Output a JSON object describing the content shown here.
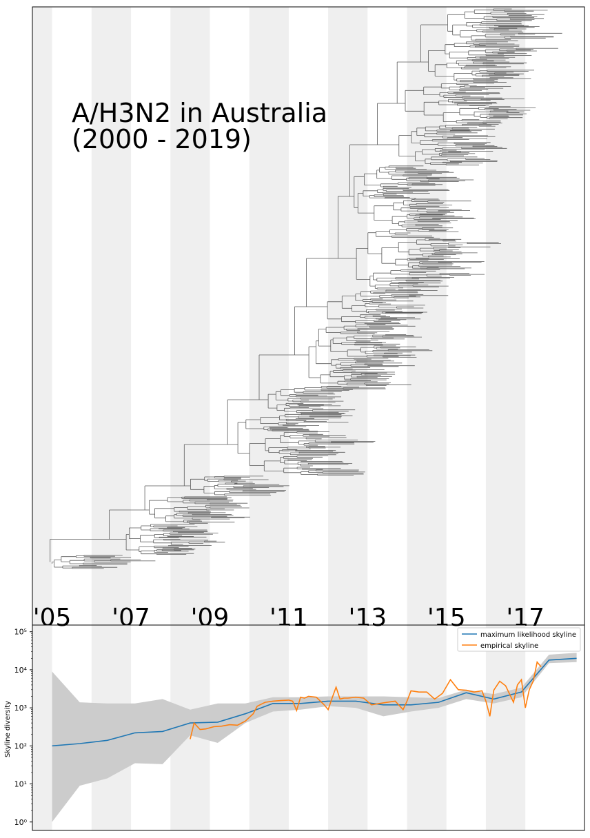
{
  "chart_data": [
    {
      "type": "tree",
      "title_lines": [
        "A/H3N2 in Australia",
        "(2000 - 2019)"
      ],
      "x_tick_labels": [
        "'05",
        "'07",
        "'09",
        "'11",
        "'13",
        "'15",
        "'17"
      ],
      "x_tick_years": [
        2005,
        2007,
        2009,
        2011,
        2013,
        2015,
        2017
      ],
      "xlim": [
        2004.5,
        2018.5
      ],
      "shaded_year_bands": [
        2004,
        2006,
        2008,
        2010,
        2012,
        2014,
        2016
      ]
    },
    {
      "type": "line",
      "ylabel": "Skyline diversity",
      "yscale": "log",
      "ylim": [
        0.6,
        150000
      ],
      "y_tick_labels": [
        "10⁰",
        "10¹",
        "10²",
        "10³",
        "10⁴",
        "10⁵"
      ],
      "y_tick_values": [
        1,
        10,
        100,
        1000,
        10000,
        100000
      ],
      "xlim": [
        2004.5,
        2018.5
      ],
      "legend_position": "top-right",
      "series": [
        {
          "name": "maximum likelihood skyline",
          "color": "#1f77b4",
          "x": [
            2005.0,
            2005.7,
            2006.4,
            2007.1,
            2007.8,
            2008.5,
            2009.2,
            2009.9,
            2010.6,
            2011.3,
            2012.0,
            2012.7,
            2013.4,
            2014.1,
            2014.8,
            2015.5,
            2016.2,
            2016.9,
            2017.6,
            2018.3
          ],
          "y": [
            100,
            115,
            140,
            220,
            240,
            400,
            420,
            700,
            1300,
            1300,
            1500,
            1500,
            1200,
            1200,
            1400,
            2500,
            1700,
            2600,
            18000,
            20000
          ],
          "ci_low": [
            1,
            9,
            14,
            35,
            33,
            190,
            120,
            400,
            800,
            900,
            1100,
            1000,
            600,
            800,
            1000,
            1700,
            1300,
            1900,
            15000,
            16000
          ],
          "ci_high": [
            9000,
            1400,
            1300,
            1300,
            1700,
            900,
            1300,
            1300,
            1900,
            1900,
            2000,
            2000,
            2000,
            1900,
            1800,
            3000,
            2300,
            3400,
            25000,
            28000
          ]
        },
        {
          "name": "empirical skyline",
          "color": "#ff7f0e",
          "x": [
            2008.5,
            2008.6,
            2008.75,
            2008.9,
            2009.1,
            2009.3,
            2009.5,
            2009.7,
            2009.9,
            2010.1,
            2010.2,
            2010.4,
            2010.6,
            2010.8,
            2011.0,
            2011.1,
            2011.2,
            2011.3,
            2011.4,
            2011.5,
            2011.7,
            2011.9,
            2012.0,
            2012.1,
            2012.2,
            2012.3,
            2012.4,
            2012.5,
            2012.7,
            2012.9,
            2013.1,
            2013.3,
            2013.5,
            2013.7,
            2013.9,
            2014.0,
            2014.1,
            2014.3,
            2014.5,
            2014.7,
            2014.9,
            2015.1,
            2015.3,
            2015.5,
            2015.7,
            2015.9,
            2016.0,
            2016.1,
            2016.2,
            2016.35,
            2016.5,
            2016.7,
            2016.8,
            2016.9,
            2017.0,
            2017.1,
            2017.2,
            2017.3,
            2017.4
          ],
          "y": [
            150,
            400,
            270,
            280,
            320,
            330,
            360,
            350,
            450,
            700,
            1100,
            1400,
            1500,
            1550,
            1600,
            1500,
            850,
            1900,
            1800,
            2000,
            1900,
            1200,
            900,
            1800,
            3500,
            1700,
            1800,
            1800,
            1900,
            1800,
            1200,
            1300,
            1400,
            1500,
            900,
            1500,
            2800,
            2600,
            2600,
            1700,
            2400,
            5500,
            3000,
            2900,
            2600,
            2800,
            1500,
            600,
            2900,
            5000,
            3800,
            1400,
            4000,
            5500,
            1000,
            3000,
            5000,
            16000,
            12000
          ]
        }
      ]
    }
  ]
}
